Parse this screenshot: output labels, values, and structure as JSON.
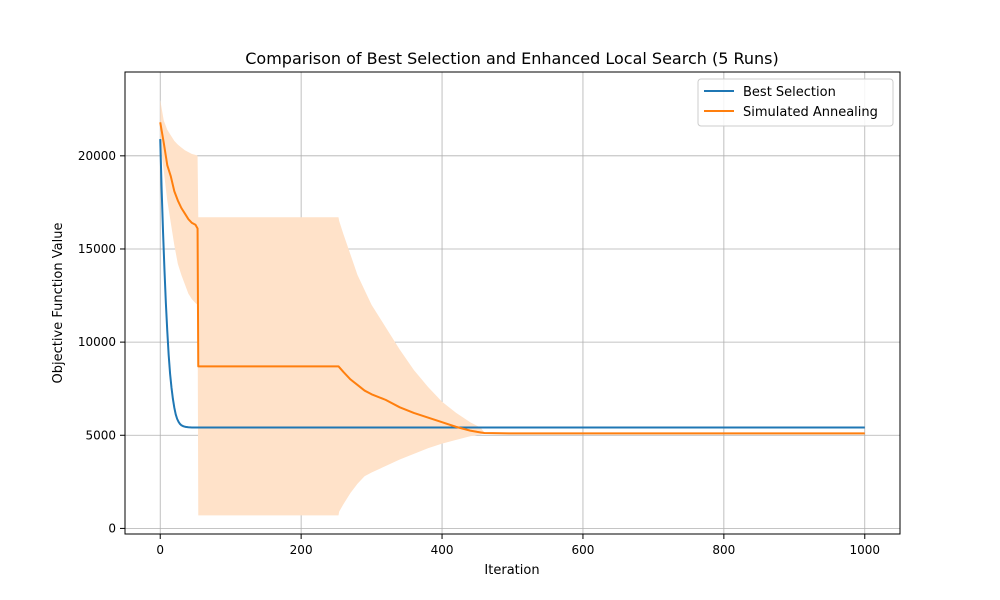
{
  "chart_data": {
    "type": "line",
    "title": "Comparison of Best Selection and Enhanced Local Search (5 Runs)",
    "xlabel": "Iteration",
    "ylabel": "Objective Function Value",
    "xlim": [
      -50,
      1050
    ],
    "ylim": [
      -300,
      24500
    ],
    "xticks": [
      0,
      200,
      400,
      600,
      800,
      1000
    ],
    "yticks": [
      0,
      5000,
      10000,
      15000,
      20000
    ],
    "grid": true,
    "legend_position": "top-right",
    "colors": {
      "series1": "#1f77b4",
      "series2": "#ff7f0e",
      "band": "#ffe2c9"
    },
    "series": [
      {
        "name": "Best Selection",
        "x": [
          0,
          2,
          4,
          6,
          8,
          10,
          12,
          14,
          16,
          18,
          20,
          22,
          24,
          26,
          28,
          30,
          33,
          36,
          40,
          45,
          50,
          60,
          100,
          200,
          400,
          600,
          800,
          1000
        ],
        "y": [
          20900,
          18200,
          15900,
          13900,
          12100,
          10600,
          9300,
          8300,
          7550,
          6950,
          6480,
          6120,
          5880,
          5720,
          5610,
          5540,
          5480,
          5450,
          5430,
          5420,
          5420,
          5420,
          5420,
          5420,
          5420,
          5420,
          5420,
          5420
        ]
      },
      {
        "name": "Simulated Annealing",
        "x": [
          0,
          5,
          10,
          15,
          20,
          25,
          30,
          35,
          40,
          45,
          50,
          53,
          54,
          60,
          100,
          150,
          200,
          250,
          253,
          260,
          265,
          270,
          280,
          290,
          300,
          320,
          340,
          360,
          380,
          400,
          420,
          440,
          450,
          455,
          460,
          500,
          600,
          800,
          1000
        ],
        "y": [
          21800,
          20700,
          19500,
          18900,
          18100,
          17600,
          17200,
          16900,
          16600,
          16400,
          16300,
          16100,
          8700,
          8700,
          8700,
          8700,
          8700,
          8700,
          8700,
          8400,
          8200,
          8000,
          7700,
          7400,
          7200,
          6900,
          6500,
          6200,
          5950,
          5700,
          5450,
          5250,
          5180,
          5150,
          5120,
          5100,
          5100,
          5100,
          5100
        ]
      }
    ],
    "band": {
      "x": [
        0,
        5,
        10,
        15,
        20,
        25,
        30,
        35,
        40,
        45,
        50,
        53,
        54,
        100,
        200,
        253,
        254,
        260,
        270,
        280,
        290,
        300,
        320,
        340,
        360,
        380,
        400,
        420,
        440,
        455,
        460,
        1000
      ],
      "upper": [
        23000,
        21900,
        21400,
        21100,
        20800,
        20600,
        20450,
        20300,
        20200,
        20100,
        20050,
        20000,
        16700,
        16700,
        16700,
        16700,
        16500,
        15800,
        14700,
        13600,
        12800,
        12000,
        10800,
        9600,
        8500,
        7600,
        6800,
        6200,
        5700,
        5400,
        5150,
        5150
      ],
      "lower": [
        20600,
        19200,
        17600,
        16400,
        15200,
        14200,
        13600,
        13100,
        12600,
        12300,
        12100,
        12000,
        700,
        700,
        700,
        700,
        900,
        1300,
        1900,
        2400,
        2800,
        3000,
        3350,
        3700,
        4000,
        4300,
        4550,
        4750,
        4950,
        5050,
        5100,
        5100
      ]
    }
  }
}
